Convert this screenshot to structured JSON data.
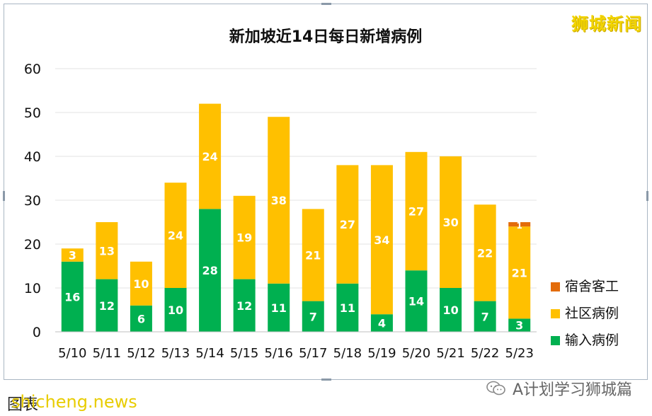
{
  "brand": "狮城新闻",
  "footer": {
    "caption": "图表",
    "watermark": "shicheng.news",
    "account": "A计划学习狮城篇"
  },
  "colors": {
    "dorm": "#e36c0a",
    "community": "#ffc000",
    "imported": "#00b050",
    "frame": "#a9b6c3",
    "brand": "#f2d400"
  },
  "chart_data": {
    "type": "bar",
    "stacked": true,
    "title": "新加坡近14日每日新增病例",
    "xlabel": "",
    "ylabel": "",
    "ylim": [
      0,
      60
    ],
    "yticks": [
      0,
      10,
      20,
      30,
      40,
      50,
      60
    ],
    "grid": true,
    "legend_position": "right",
    "categories": [
      "5/10",
      "5/11",
      "5/12",
      "5/13",
      "5/14",
      "5/15",
      "5/16",
      "5/17",
      "5/18",
      "5/19",
      "5/20",
      "5/21",
      "5/22",
      "5/23"
    ],
    "series": [
      {
        "name": "输入病例",
        "color": "#00b050",
        "values": [
          16,
          12,
          6,
          10,
          28,
          12,
          11,
          7,
          11,
          4,
          14,
          10,
          7,
          3
        ]
      },
      {
        "name": "社区病例",
        "color": "#ffc000",
        "values": [
          3,
          13,
          10,
          24,
          24,
          19,
          38,
          21,
          27,
          34,
          27,
          30,
          22,
          21
        ]
      },
      {
        "name": "宿舍客工",
        "color": "#e36c0a",
        "values": [
          0,
          0,
          0,
          0,
          0,
          0,
          0,
          0,
          0,
          0,
          0,
          0,
          0,
          1
        ]
      }
    ]
  }
}
